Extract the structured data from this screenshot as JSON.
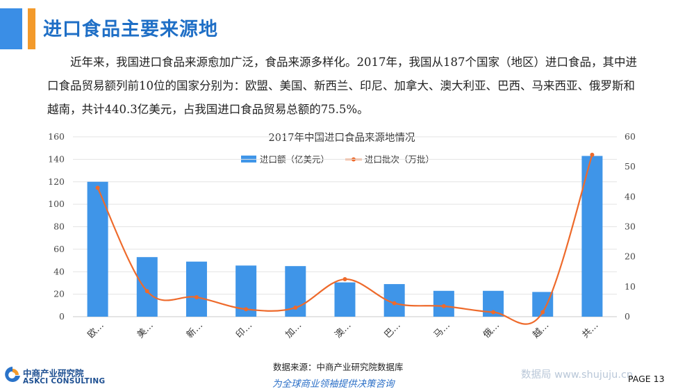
{
  "header": {
    "title": "进口食品主要来源地"
  },
  "intro_text": "近年来，我国进口食品来源愈加广泛，食品来源多样化。2017年，我国从187个国家（地区）进口食品，其中进口食品贸易额列前10位的国家分别为：欧盟、美国、新西兰、印尼、加拿大、澳大利亚、巴西、马来西亚、俄罗斯和越南，共计440.3亿美元，占我国进口食品贸易总额的75.5%。",
  "chart_data": {
    "type": "bar",
    "title": "2017年中国进口食品来源地情况",
    "categories": [
      "欧…",
      "美…",
      "新…",
      "印…",
      "加…",
      "澳…",
      "巴…",
      "马…",
      "俄…",
      "越…",
      "共…"
    ],
    "series": [
      {
        "name": "进口额（亿美元）",
        "type": "bar",
        "axis": "left",
        "color": "#3f95e8",
        "values": [
          120,
          53,
          49,
          45.5,
          45,
          30.5,
          29,
          23,
          23,
          22,
          143
        ]
      },
      {
        "name": "进口批次（万批）",
        "type": "line",
        "smooth": true,
        "axis": "right",
        "color": "#ee6a2b",
        "values": [
          43,
          8.5,
          6.5,
          2.5,
          3,
          12.5,
          4.5,
          3.5,
          1.5,
          1.5,
          54
        ]
      }
    ],
    "y_left": {
      "min": 0,
      "max": 160,
      "step": 20
    },
    "y_right": {
      "min": 0,
      "max": 60,
      "step": 10
    },
    "legend_position": "top-center",
    "grid": "horizontal"
  },
  "footer": {
    "source": "数据来源：中商产业研究院数据库",
    "slogan": "为全球商业领袖提供决策咨询",
    "logo_cn": "中商产业研究院",
    "logo_en": "ASKCI CONSULTING",
    "watermark": "数据局 www.shujuju.cn",
    "page_label": "PAGE 13"
  },
  "colors": {
    "title_blue": "#1f6fc6",
    "accent_blue": "#3a8ee6",
    "accent_orange": "#f39a2b"
  }
}
